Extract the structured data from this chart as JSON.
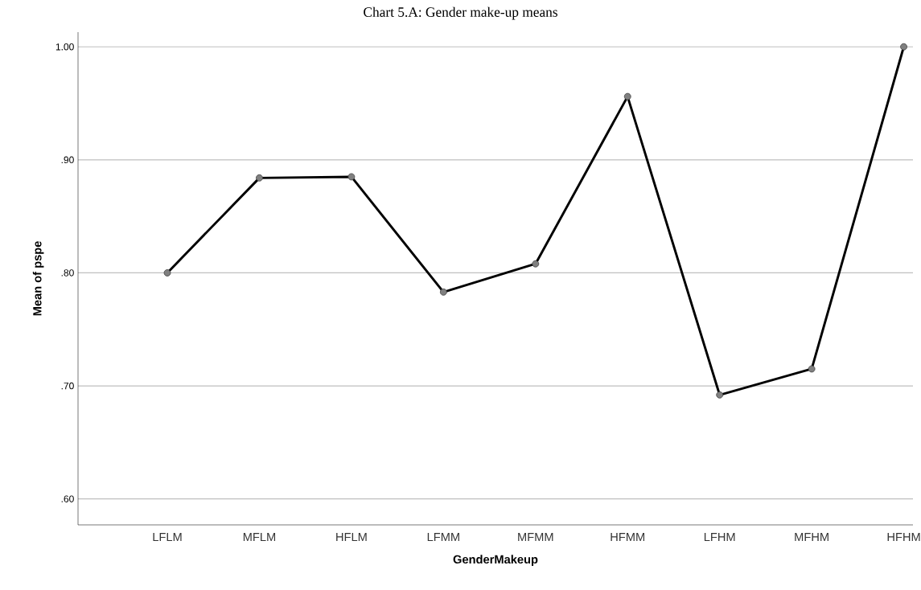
{
  "chart_data": {
    "type": "line",
    "title": "Chart 5.A: Gender make-up means",
    "xlabel": "GenderMakeup",
    "ylabel": "Mean of pspe",
    "categories": [
      "LFLM",
      "MFLM",
      "HFLM",
      "LFMM",
      "MFMM",
      "HFMM",
      "LFHM",
      "MFHM",
      "HFHM"
    ],
    "values": [
      0.8,
      0.884,
      0.885,
      0.783,
      0.808,
      0.956,
      0.692,
      0.715,
      1.0
    ],
    "color": "#000000",
    "marker": "circle",
    "line_style": "solid",
    "grid": "y",
    "ylim": [
      0.577,
      1.013
    ],
    "yticks": [
      {
        "value": 0.6,
        "label": ".60"
      },
      {
        "value": 0.7,
        "label": ".70"
      },
      {
        "value": 0.8,
        "label": ".80"
      },
      {
        "value": 0.9,
        "label": ".90"
      },
      {
        "value": 1.0,
        "label": "1.00"
      }
    ]
  }
}
